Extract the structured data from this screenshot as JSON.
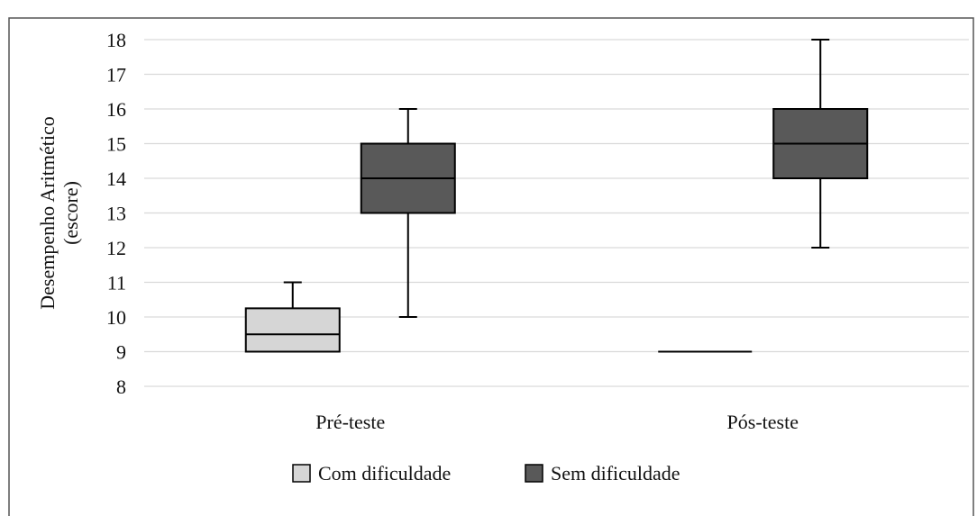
{
  "chart_data": {
    "type": "box",
    "categories": [
      "Pré-teste",
      "Pós-teste"
    ],
    "ylabel": [
      "Desempenho Aritmético",
      "(escore)"
    ],
    "ylim": [
      8,
      18
    ],
    "yticks": [
      8,
      9,
      10,
      11,
      12,
      13,
      14,
      15,
      16,
      17,
      18
    ],
    "grid": true,
    "legend_position": "bottom",
    "series": [
      {
        "name": "Com dificuldade",
        "color": "#d6d6d6",
        "boxes": [
          {
            "category": "Pré-teste",
            "min": 9,
            "q1": 9,
            "median": 9.5,
            "q3": 10.25,
            "max": 11
          },
          {
            "category": "Pós-teste",
            "min": 9,
            "q1": 9,
            "median": 9,
            "q3": 9,
            "max": 9
          }
        ]
      },
      {
        "name": "Sem dificuldade",
        "color": "#595959",
        "boxes": [
          {
            "category": "Pré-teste",
            "min": 10,
            "q1": 13,
            "median": 14,
            "q3": 15,
            "max": 16
          },
          {
            "category": "Pós-teste",
            "min": 12,
            "q1": 14,
            "median": 15,
            "q3": 16,
            "max": 18
          }
        ]
      }
    ]
  }
}
